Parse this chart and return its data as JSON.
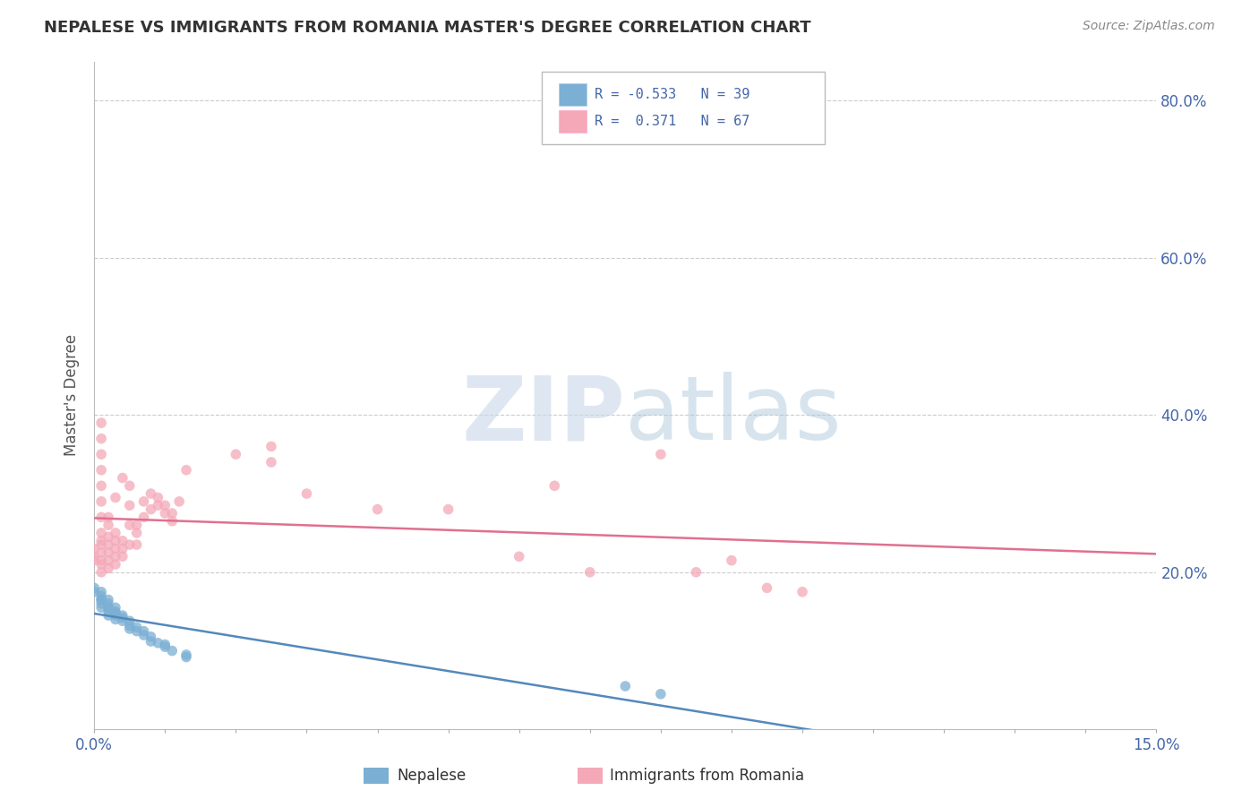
{
  "title": "NEPALESE VS IMMIGRANTS FROM ROMANIA MASTER'S DEGREE CORRELATION CHART",
  "source": "Source: ZipAtlas.com",
  "ylabel": "Master's Degree",
  "y_tick_labels_right": [
    "20.0%",
    "40.0%",
    "60.0%",
    "80.0%"
  ],
  "y_tick_values_right": [
    0.2,
    0.4,
    0.6,
    0.8
  ],
  "x_min": 0.0,
  "x_max": 0.15,
  "y_min": 0.0,
  "y_max": 0.85,
  "legend_r1": "R = -0.533",
  "legend_n1": "N = 39",
  "legend_r2": "R =  0.371",
  "legend_n2": "N = 67",
  "color_blue": "#7BAFD4",
  "color_pink": "#F4A8B8",
  "color_blue_line": "#5588BB",
  "color_pink_line": "#E07090",
  "background_color": "#FFFFFF",
  "grid_color": "#CCCCCC",
  "axis_color": "#4466AA",
  "nepalese_x": [
    0.0,
    0.0,
    0.001,
    0.001,
    0.001,
    0.001,
    0.001,
    0.001,
    0.002,
    0.002,
    0.002,
    0.002,
    0.002,
    0.002,
    0.003,
    0.003,
    0.003,
    0.003,
    0.003,
    0.004,
    0.004,
    0.004,
    0.005,
    0.005,
    0.005,
    0.006,
    0.006,
    0.007,
    0.007,
    0.008,
    0.008,
    0.009,
    0.01,
    0.01,
    0.011,
    0.013,
    0.013,
    0.075,
    0.08
  ],
  "nepalese_y": [
    0.175,
    0.18,
    0.17,
    0.165,
    0.175,
    0.165,
    0.16,
    0.155,
    0.165,
    0.155,
    0.16,
    0.15,
    0.145,
    0.155,
    0.15,
    0.145,
    0.14,
    0.155,
    0.148,
    0.145,
    0.138,
    0.142,
    0.132,
    0.138,
    0.128,
    0.125,
    0.13,
    0.12,
    0.125,
    0.118,
    0.112,
    0.11,
    0.105,
    0.108,
    0.1,
    0.095,
    0.092,
    0.055,
    0.045
  ],
  "romania_x": [
    0.0,
    0.0,
    0.0,
    0.001,
    0.001,
    0.001,
    0.001,
    0.001,
    0.001,
    0.001,
    0.001,
    0.001,
    0.001,
    0.001,
    0.001,
    0.001,
    0.001,
    0.002,
    0.002,
    0.002,
    0.002,
    0.002,
    0.002,
    0.002,
    0.003,
    0.003,
    0.003,
    0.003,
    0.003,
    0.003,
    0.004,
    0.004,
    0.004,
    0.004,
    0.005,
    0.005,
    0.005,
    0.005,
    0.006,
    0.006,
    0.006,
    0.007,
    0.007,
    0.008,
    0.008,
    0.009,
    0.009,
    0.01,
    0.01,
    0.011,
    0.011,
    0.012,
    0.013,
    0.02,
    0.025,
    0.025,
    0.03,
    0.04,
    0.05,
    0.06,
    0.065,
    0.07,
    0.08,
    0.085,
    0.09,
    0.095,
    0.1
  ],
  "romania_y": [
    0.23,
    0.22,
    0.215,
    0.25,
    0.24,
    0.235,
    0.225,
    0.215,
    0.21,
    0.2,
    0.39,
    0.37,
    0.35,
    0.33,
    0.31,
    0.29,
    0.27,
    0.245,
    0.235,
    0.225,
    0.215,
    0.205,
    0.27,
    0.26,
    0.25,
    0.24,
    0.23,
    0.22,
    0.21,
    0.295,
    0.24,
    0.23,
    0.22,
    0.32,
    0.31,
    0.285,
    0.26,
    0.235,
    0.26,
    0.25,
    0.235,
    0.29,
    0.27,
    0.3,
    0.28,
    0.295,
    0.285,
    0.285,
    0.275,
    0.275,
    0.265,
    0.29,
    0.33,
    0.35,
    0.34,
    0.36,
    0.3,
    0.28,
    0.28,
    0.22,
    0.31,
    0.2,
    0.35,
    0.2,
    0.215,
    0.18,
    0.175
  ]
}
